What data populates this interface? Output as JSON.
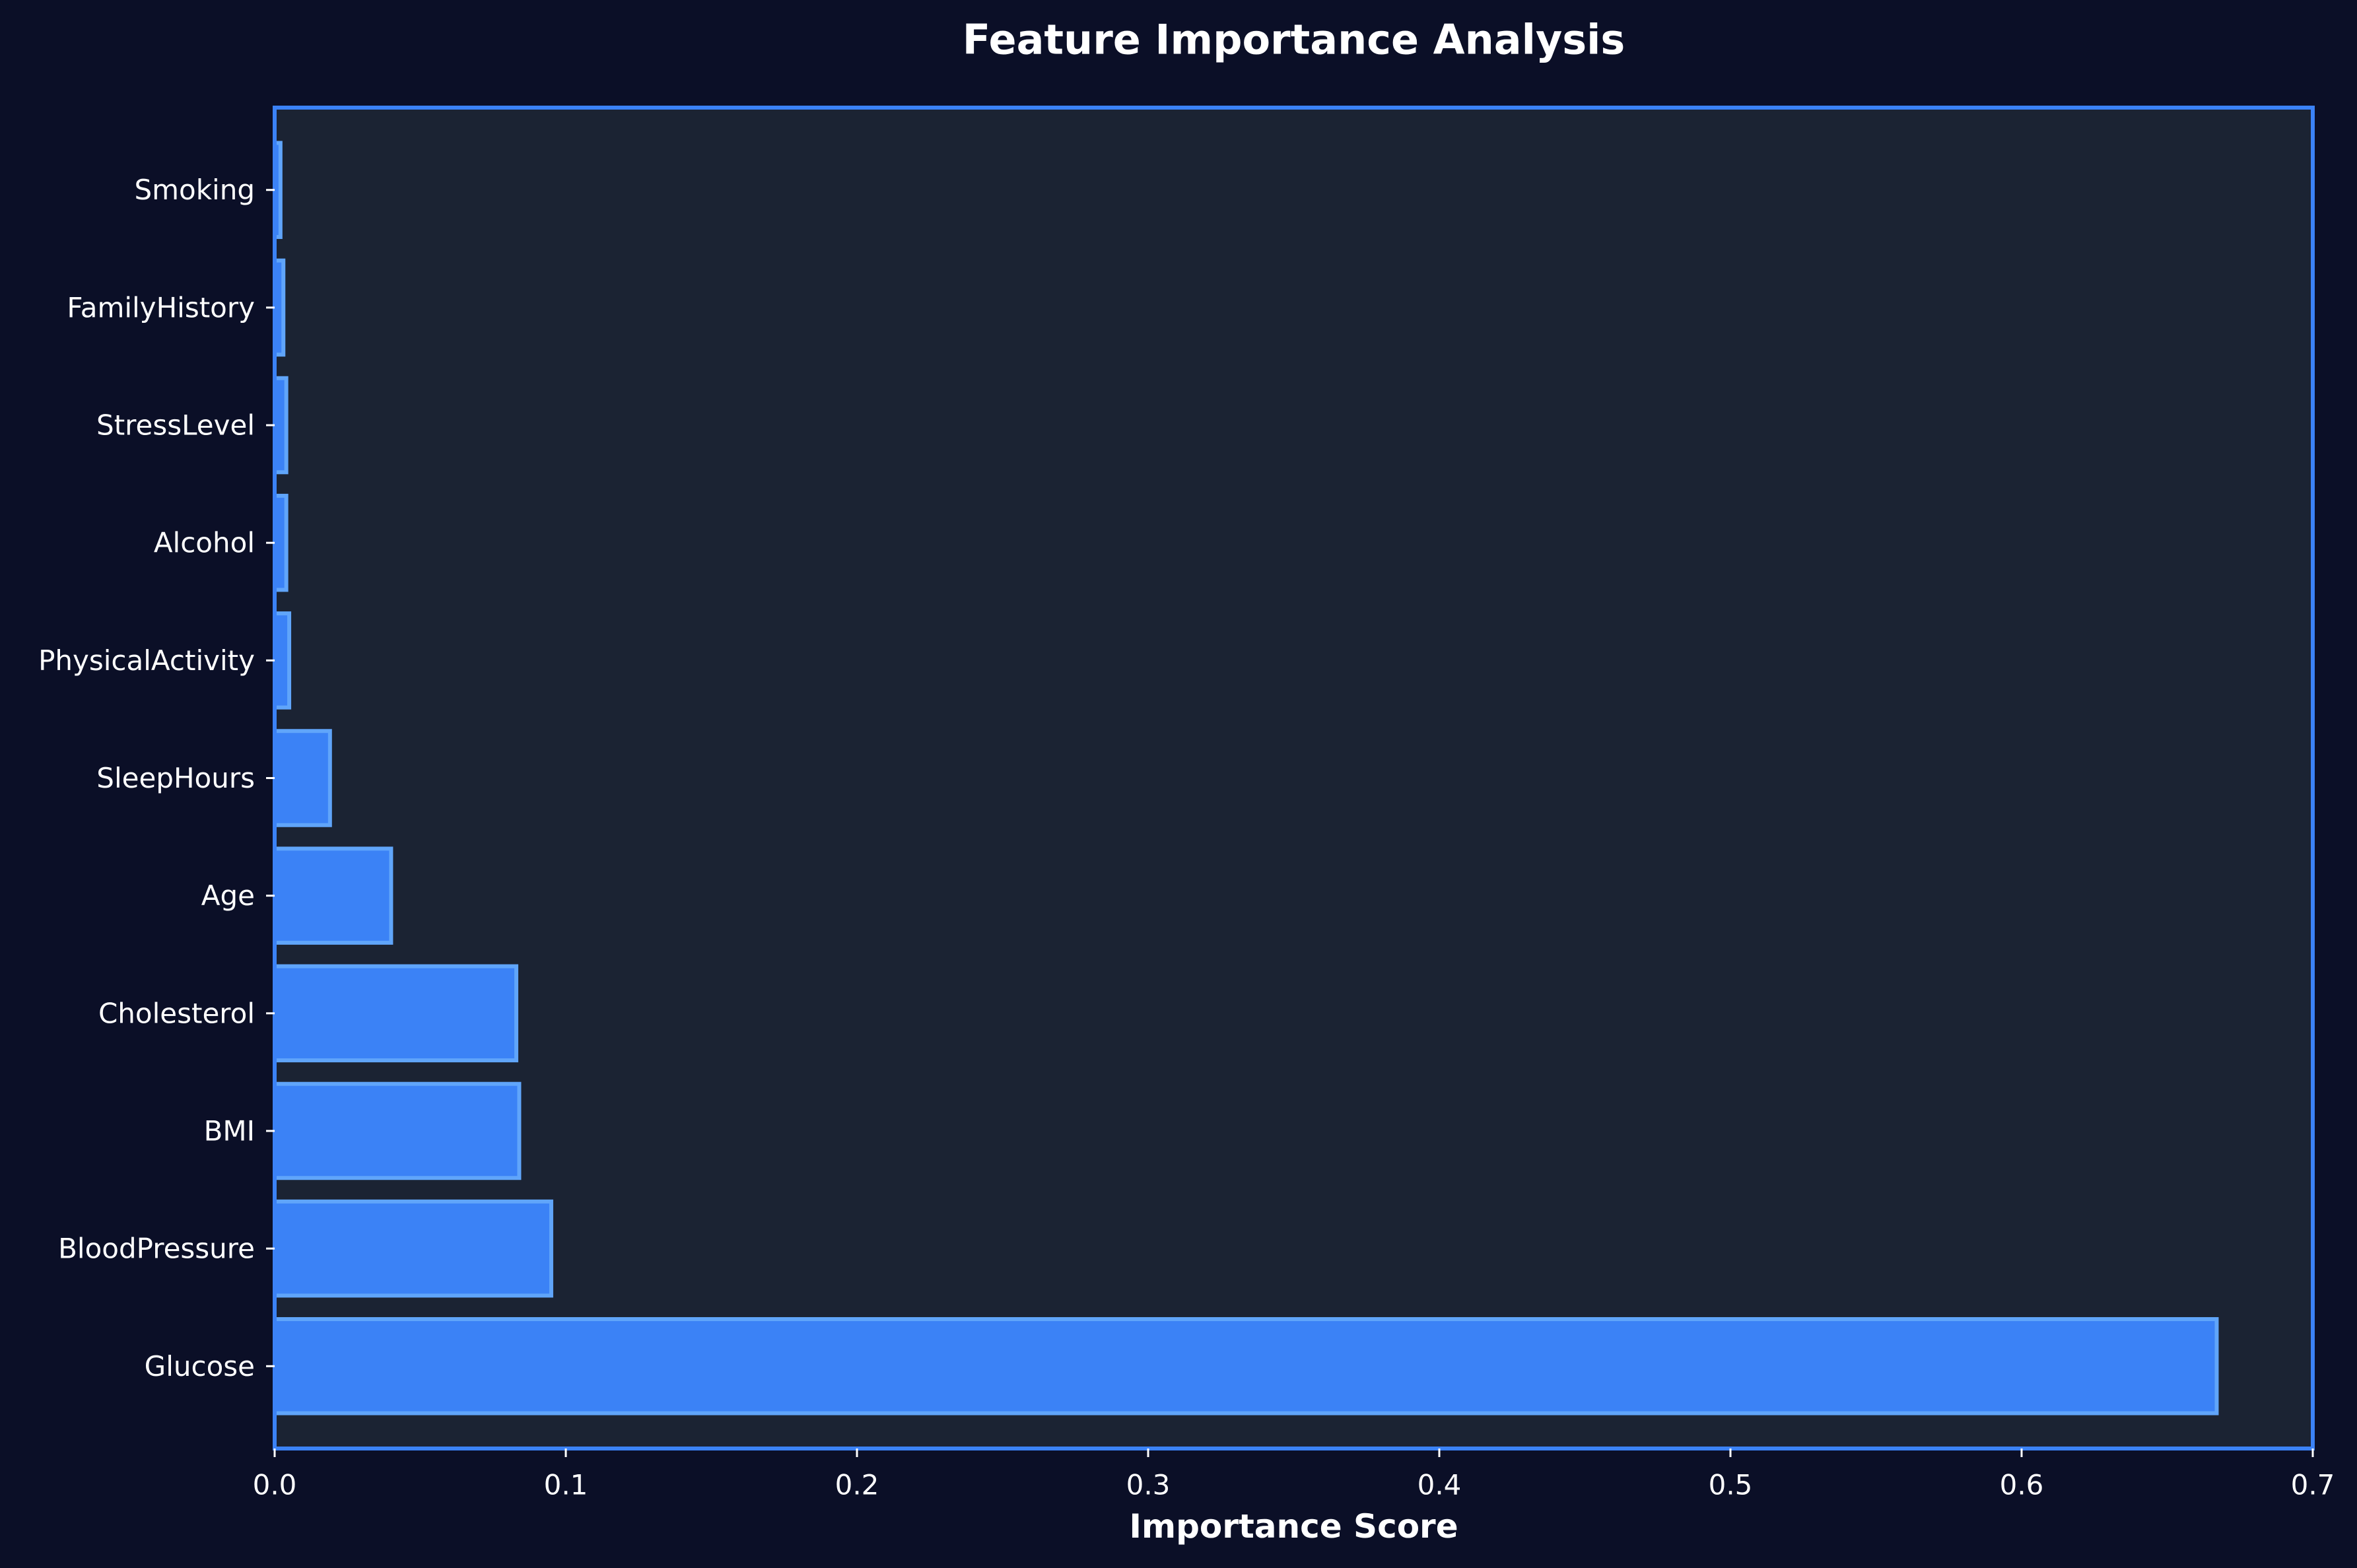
{
  "chart_data": {
    "type": "bar",
    "orientation": "horizontal",
    "title": "Feature Importance Analysis",
    "xlabel": "Importance Score",
    "ylabel": "",
    "xlim": [
      0,
      0.7
    ],
    "x_ticks": [
      0.0,
      0.1,
      0.2,
      0.3,
      0.4,
      0.5,
      0.6,
      0.7
    ],
    "x_tick_labels": [
      "0.0",
      "0.1",
      "0.2",
      "0.3",
      "0.4",
      "0.5",
      "0.6",
      "0.7"
    ],
    "categories": [
      "Glucose",
      "BloodPressure",
      "BMI",
      "Cholesterol",
      "Age",
      "SleepHours",
      "PhysicalActivity",
      "Alcohol",
      "StressLevel",
      "FamilyHistory",
      "Smoking"
    ],
    "values": [
      0.667,
      0.095,
      0.084,
      0.083,
      0.04,
      0.019,
      0.005,
      0.004,
      0.004,
      0.003,
      0.002
    ],
    "grid": false,
    "legend": "none"
  },
  "colors": {
    "page_background": "#0b0f27",
    "plot_background": "#1b2333",
    "frame": "#3b82f6",
    "bar_fill": "#3b82f6",
    "bar_edge": "#60a5fa",
    "text": "#ffffff"
  }
}
